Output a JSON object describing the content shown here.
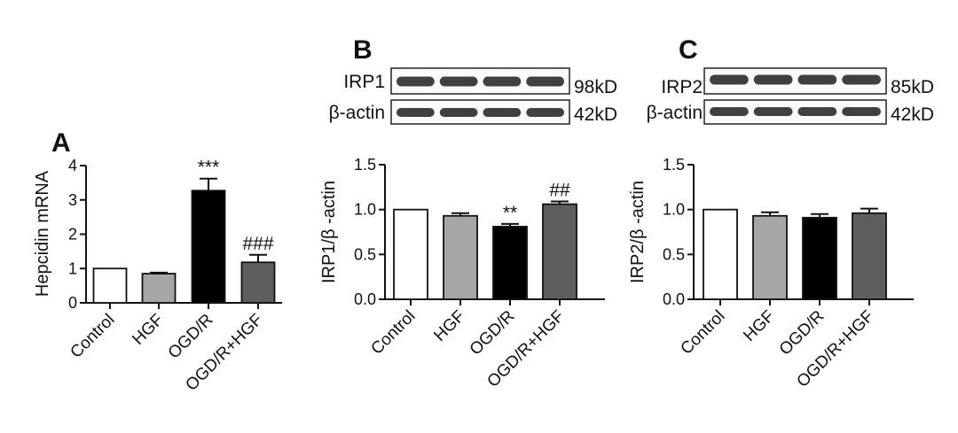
{
  "chart_data": [
    {
      "type": "bar",
      "panel": "A",
      "categories": [
        "Control",
        "HGF",
        "OGD/R",
        "OGD/R+HGF"
      ],
      "values": [
        1.0,
        0.85,
        3.27,
        1.18
      ],
      "error": [
        0.0,
        0.03,
        0.35,
        0.22
      ],
      "annotations": [
        "",
        "",
        "***",
        "###"
      ],
      "ylabel": "Hepcidin mRNA",
      "ylim": [
        0,
        4
      ],
      "yticks": [
        "0",
        "1",
        "2",
        "3",
        "4"
      ],
      "colors": [
        "#ffffff",
        "#a6a6a6",
        "#000000",
        "#5e5e5e"
      ]
    },
    {
      "type": "bar",
      "panel": "B",
      "categories": [
        "Control",
        "HGF",
        "OGD/R",
        "OGD/R+HGF"
      ],
      "values": [
        1.0,
        0.93,
        0.81,
        1.06
      ],
      "error": [
        0.0,
        0.03,
        0.03,
        0.03
      ],
      "annotations": [
        "",
        "",
        "**",
        "##"
      ],
      "ylabel": "IRP1/β -actin",
      "ylim": [
        0,
        1.5
      ],
      "yticks": [
        "0.0",
        "0.5",
        "1.0",
        "1.5"
      ],
      "colors": [
        "#ffffff",
        "#a6a6a6",
        "#000000",
        "#5e5e5e"
      ]
    },
    {
      "type": "bar",
      "panel": "C",
      "categories": [
        "Control",
        "HGF",
        "OGD/R",
        "OGD/R+HGF"
      ],
      "values": [
        1.0,
        0.93,
        0.91,
        0.96
      ],
      "error": [
        0.0,
        0.04,
        0.04,
        0.05
      ],
      "annotations": [
        "",
        "",
        "",
        ""
      ],
      "ylabel": "IRP2/β -actin",
      "ylim": [
        0,
        1.5
      ],
      "yticks": [
        "0.0",
        "0.5",
        "1.0",
        "1.5"
      ],
      "colors": [
        "#ffffff",
        "#a6a6a6",
        "#000000",
        "#5e5e5e"
      ]
    }
  ],
  "blots": {
    "lanes": 4,
    "B": {
      "letter": "B",
      "rows": [
        {
          "label": "IRP1",
          "size": "98kD"
        },
        {
          "label": "β-actin",
          "size": "42kD"
        }
      ]
    },
    "C": {
      "letter": "C",
      "rows": [
        {
          "label": "IRP2",
          "size": "85kD"
        },
        {
          "label": "β-actin",
          "size": "42kD"
        }
      ]
    }
  }
}
